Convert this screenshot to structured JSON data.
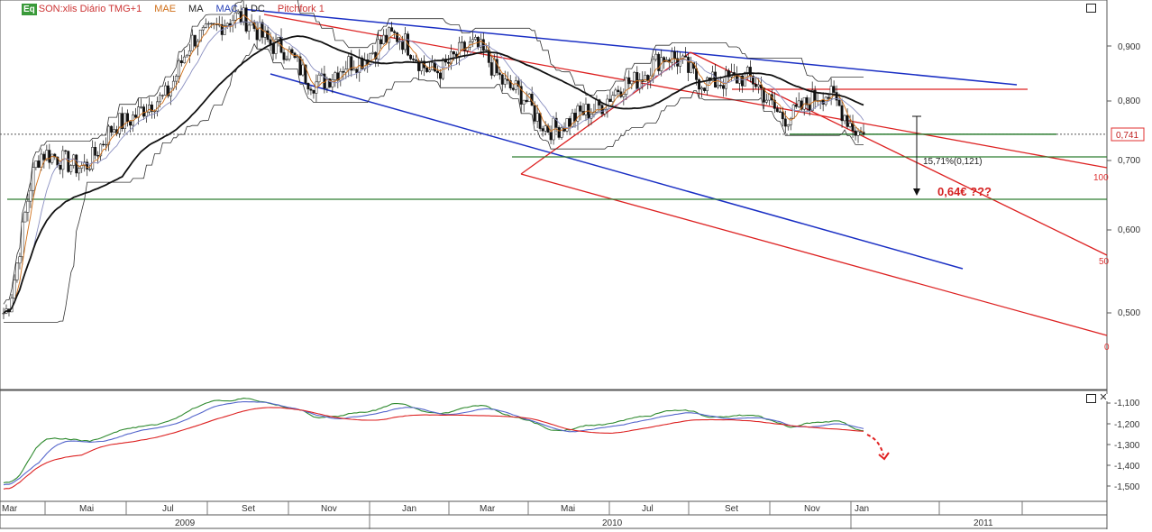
{
  "legend": {
    "badge": "Eq",
    "symbol": "SON:xlis Diário TMG+1",
    "items": [
      "MAE",
      "MA",
      "MAC",
      "DC",
      "Pitchfork 1"
    ]
  },
  "price_panel": {
    "last_price": "0,741",
    "y_ticks": [
      "0,900",
      "0,800",
      "0,700",
      "0,600",
      "0,500"
    ],
    "pitchfork_levels": [
      "100",
      "50",
      "0"
    ],
    "measure_label": "15,71%(0,121)",
    "target_label": "0,64€ ???",
    "colors": {
      "pitchfork": "#dd2222",
      "channel": "#1a2fc4",
      "support": "#2e7d32",
      "target": "#d42020"
    }
  },
  "indicator_panel": {
    "y_ticks": [
      "-1,100",
      "-1,200",
      "-1,300",
      "-1,400",
      "-1,500"
    ]
  },
  "x_axis": {
    "months": [
      "Mar",
      "Mai",
      "Jul",
      "Set",
      "Nov",
      "Jan",
      "Mar",
      "Mai",
      "Jul",
      "Set",
      "Nov",
      "Jan"
    ],
    "years": [
      "2009",
      "2010",
      "2011"
    ]
  },
  "chart_data": {
    "type": "candlestick",
    "title": "SON:xlis Diário",
    "last_value": 0.741,
    "y_range": [
      0.42,
      0.98
    ],
    "indicator_range": [
      -1.56,
      -1.05
    ],
    "approx_close_path": [
      {
        "x": "Mar 2009",
        "y": 0.5
      },
      {
        "x": "Abr 2009",
        "y": 0.71
      },
      {
        "x": "Mai 2009",
        "y": 0.69
      },
      {
        "x": "Jun 2009",
        "y": 0.76
      },
      {
        "x": "Jul 2009",
        "y": 0.8
      },
      {
        "x": "Ago 2009",
        "y": 0.92
      },
      {
        "x": "Set 2009",
        "y": 0.96
      },
      {
        "x": "Out 2009",
        "y": 0.9
      },
      {
        "x": "Nov 2009",
        "y": 0.83
      },
      {
        "x": "Dez 2009",
        "y": 0.87
      },
      {
        "x": "Jan 2010",
        "y": 0.92
      },
      {
        "x": "Fev 2010",
        "y": 0.85
      },
      {
        "x": "Mar 2010",
        "y": 0.9
      },
      {
        "x": "Abr 2010",
        "y": 0.82
      },
      {
        "x": "Mai 2010",
        "y": 0.75
      },
      {
        "x": "Jun 2010",
        "y": 0.78
      },
      {
        "x": "Jul 2010",
        "y": 0.83
      },
      {
        "x": "Ago 2010",
        "y": 0.88
      },
      {
        "x": "Set 2010",
        "y": 0.83
      },
      {
        "x": "Out 2010",
        "y": 0.84
      },
      {
        "x": "Nov 2010",
        "y": 0.77
      },
      {
        "x": "Dez 2010",
        "y": 0.81
      },
      {
        "x": "Jan 2011",
        "y": 0.741
      }
    ],
    "horizontal_lines": [
      0.741,
      0.705,
      0.641,
      0.822
    ]
  }
}
